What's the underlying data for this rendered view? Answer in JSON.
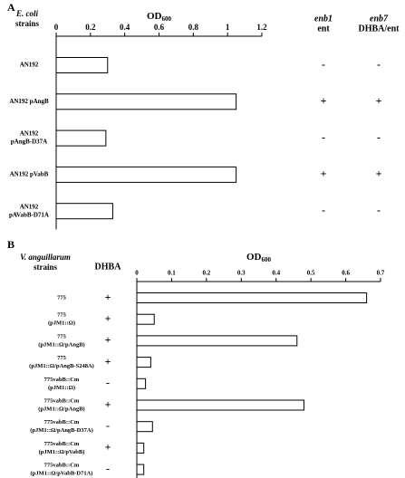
{
  "chart_data": [
    {
      "type": "bar",
      "orientation": "horizontal",
      "panel": "A",
      "category_title": [
        "E. coli",
        "strains"
      ],
      "x_label": {
        "text": "OD",
        "subscript": "600"
      },
      "categories": [
        [
          "AN192"
        ],
        [
          "AN192 pAngB"
        ],
        [
          "AN192",
          "pAngB-D37A"
        ],
        [
          "AN192 pVabB"
        ],
        [
          "AN192",
          "pAVabB-D71A"
        ]
      ],
      "values": [
        0.3,
        1.05,
        0.29,
        1.05,
        0.33
      ],
      "color": "#ffffff",
      "xlim": [
        0,
        1.2
      ],
      "xticks": [
        0,
        0.2,
        0.4,
        0.6,
        0.8,
        1,
        1.2
      ],
      "columns": [
        {
          "header": [
            "enb1",
            "ent"
          ],
          "values": [
            "-",
            "+",
            "-",
            "+",
            "-"
          ]
        },
        {
          "header": [
            "enb7",
            "DHBA/ent"
          ],
          "values": [
            "-",
            "+",
            "-",
            "+",
            "-"
          ]
        }
      ]
    },
    {
      "type": "bar",
      "orientation": "horizontal",
      "panel": "B",
      "category_title": [
        "V. anguillarum",
        "strains"
      ],
      "x_label": {
        "text": "OD",
        "subscript": "600"
      },
      "categories": [
        [
          "775"
        ],
        [
          "775",
          "(pJM1::Ω)"
        ],
        [
          "775",
          "(pJM1::Ω/pAngB)"
        ],
        [
          "775",
          "(pJM1::Ω/pAngB-S248A)"
        ],
        [
          "775vabB::Cm",
          "(pJM1::Ω)"
        ],
        [
          "775vabB::Cm",
          "(pJM1::Ω/pAngB)"
        ],
        [
          "775vabB::Cm",
          "(pJM1::Ω/pAngB-D37A)"
        ],
        [
          "775vabB::Cm",
          "(pJM1::Ω/pVabB)"
        ],
        [
          "775vabB::Cm",
          "(pJM1::Ω/pVabB-D71A)"
        ]
      ],
      "values": [
        0.66,
        0.05,
        0.46,
        0.04,
        0.025,
        0.48,
        0.045,
        0.02,
        0.02
      ],
      "color": "#ffffff",
      "xlim": [
        0,
        0.7
      ],
      "xticks": [
        0,
        0.1,
        0.2,
        0.3,
        0.4,
        0.5,
        0.6,
        0.7
      ],
      "columns": [
        {
          "header": [
            "DHBA"
          ],
          "values": [
            "+",
            "+",
            "+",
            "+",
            "-",
            "+",
            "-",
            "+",
            "-"
          ]
        }
      ]
    }
  ]
}
